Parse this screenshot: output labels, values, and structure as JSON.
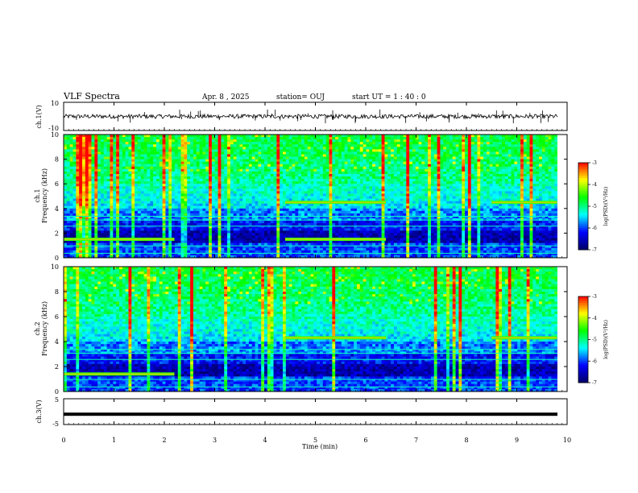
{
  "header": {
    "title": "VLF Spectra",
    "date": "Apr. 8 , 2025",
    "station": "station= OUJ",
    "start": "start  UT =   1 : 40 : 0"
  },
  "chart_data": [
    {
      "type": "line",
      "panel": "ch1-waveform",
      "ylabel": "ch.1(V)",
      "ylim": [
        -10,
        10
      ],
      "yticks": [
        "10",
        "-10"
      ],
      "xlim": [
        0,
        10
      ],
      "description_values": {
        "baseline_V": 0,
        "noise_amplitude_V": 1.5
      }
    },
    {
      "type": "heatmap",
      "panel": "ch1-spectrogram",
      "ylabel": "ch.1\nFrequency (kHz)",
      "ylabel_line1": "ch.1",
      "ylabel_line2": "Frequency (kHz)",
      "xlim": [
        0,
        10
      ],
      "ylim": [
        0,
        10
      ],
      "yticks": [
        "0",
        "2",
        "4",
        "6",
        "8",
        "10"
      ],
      "colorbar": {
        "label": "log(PSD)(V²/Hz)",
        "range": [
          -7,
          -3
        ],
        "ticks": [
          "-3",
          "-4",
          "-5",
          "-6",
          "-7"
        ]
      },
      "features": [
        {
          "label": "band",
          "t_start": 4.4,
          "t_end": 6.4,
          "freq_khz": 4.5
        },
        {
          "label": "band",
          "t_start": 8.5,
          "t_end": 9.8,
          "freq_khz": 4.5
        },
        {
          "label": "band",
          "t_start": 0.0,
          "t_end": 2.2,
          "freq_khz": 1.5
        },
        {
          "label": "band",
          "t_start": 4.4,
          "t_end": 6.4,
          "freq_khz": 1.5
        }
      ]
    },
    {
      "type": "heatmap",
      "panel": "ch2-spectrogram",
      "ylabel_line1": "ch.2",
      "ylabel_line2": "Frequency (kHz)",
      "xlim": [
        0,
        10
      ],
      "ylim": [
        0,
        10
      ],
      "yticks": [
        "0",
        "2",
        "4",
        "6",
        "8",
        "10"
      ],
      "colorbar": {
        "label": "log(PSD)(V²/Hz)",
        "range": [
          -7,
          -3
        ],
        "ticks": [
          "-3",
          "-4",
          "-5",
          "-6",
          "-7"
        ]
      },
      "features": [
        {
          "label": "band",
          "t_start": 4.4,
          "t_end": 6.4,
          "freq_khz": 4.3
        },
        {
          "label": "band",
          "t_start": 8.5,
          "t_end": 9.8,
          "freq_khz": 4.3
        },
        {
          "label": "band",
          "t_start": 0.0,
          "t_end": 2.2,
          "freq_khz": 1.4
        }
      ]
    },
    {
      "type": "line",
      "panel": "ch3-waveform",
      "ylabel": "ch.3(V)",
      "ylim": [
        -5,
        5
      ],
      "yticks": [
        "5",
        "0",
        "-5"
      ],
      "xlim": [
        0,
        10
      ],
      "values": {
        "constant_V": -1
      }
    }
  ],
  "xaxis": {
    "label": "Time (min)",
    "ticks": [
      "0",
      "1",
      "2",
      "3",
      "4",
      "5",
      "6",
      "7",
      "8",
      "9",
      "10"
    ]
  },
  "colors": {
    "colormap": [
      "#000066",
      "#0000ff",
      "#00ffff",
      "#00ff00",
      "#ffff00",
      "#ff0000",
      "#ffffff"
    ]
  }
}
